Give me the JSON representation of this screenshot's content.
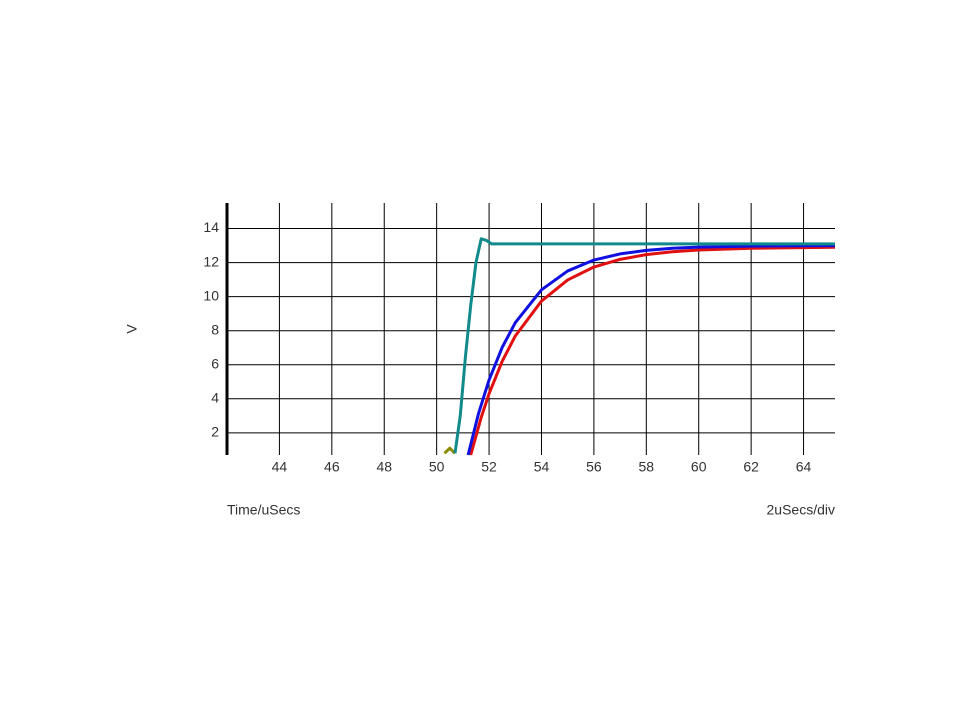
{
  "chart_data": {
    "type": "line",
    "y_label": "V",
    "x_label": "Time/uSecs",
    "annotation": "2uSecs/div",
    "xlim": [
      42,
      65.2
    ],
    "ylim": [
      0.7,
      15.5
    ],
    "xticks": [
      44,
      46,
      48,
      50,
      52,
      54,
      56,
      58,
      60,
      62,
      64
    ],
    "yticks": [
      2,
      4,
      6,
      8,
      10,
      12,
      14
    ],
    "grid": true,
    "series": [
      {
        "color": "#e01010",
        "x": [
          51.3,
          51.7,
          52,
          52.5,
          53,
          54,
          55,
          56,
          57,
          58,
          59,
          60,
          62,
          65.2
        ],
        "values": [
          0.7,
          2.91,
          4.3,
          6.2,
          7.69,
          9.74,
          10.98,
          11.74,
          12.19,
          12.47,
          12.64,
          12.74,
          12.84,
          12.9
        ]
      },
      {
        "color": "#1010e0",
        "x": [
          51.2,
          51.6,
          52,
          52.5,
          53,
          54,
          55,
          56,
          57,
          58,
          59,
          60,
          62,
          65.2
        ],
        "values": [
          0.7,
          3.15,
          5.11,
          7.02,
          8.47,
          10.4,
          11.51,
          12.15,
          12.51,
          12.72,
          12.84,
          12.91,
          12.97,
          13.0
        ]
      },
      {
        "color": "#8a8a00",
        "x": [
          50.3,
          50.5,
          50.7
        ],
        "values": [
          0.8,
          1.1,
          0.8
        ]
      },
      {
        "color": "#108a8a",
        "x": [
          50.7,
          50.9,
          51.1,
          51.3,
          51.5,
          51.7,
          51.9,
          52.1,
          52.3,
          54,
          58,
          65.2
        ],
        "values": [
          0.8,
          3,
          6.5,
          9.5,
          12,
          13.4,
          13.3,
          13.1,
          13.1,
          13.1,
          13.1,
          13.1
        ]
      }
    ]
  }
}
